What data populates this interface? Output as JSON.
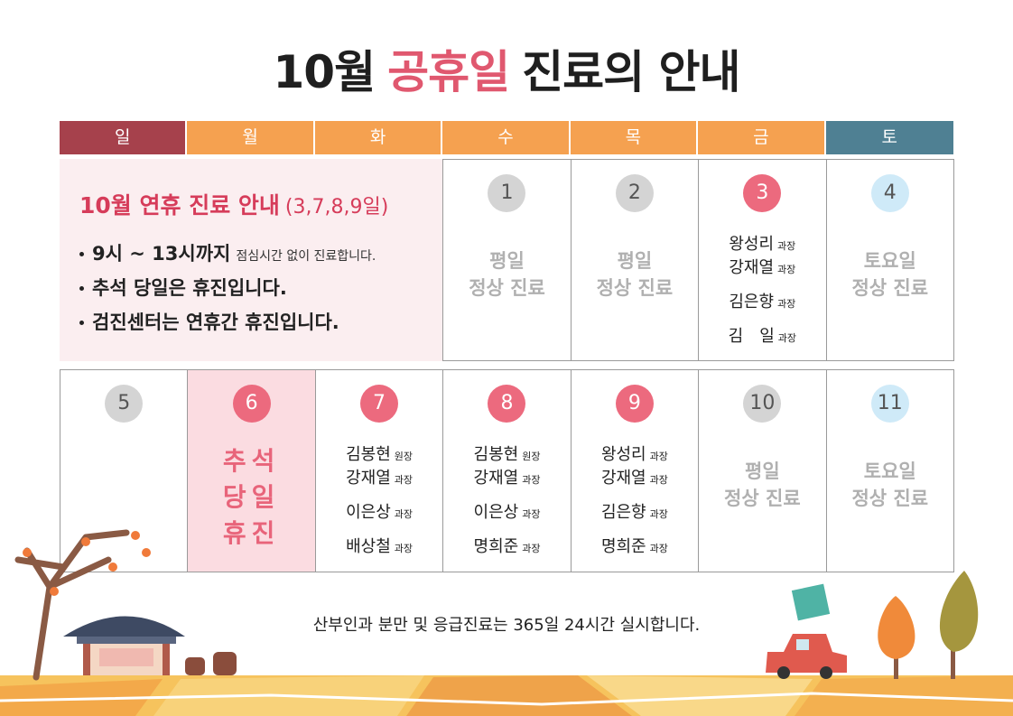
{
  "title": {
    "prefix": "10월",
    "highlight": "공휴일",
    "suffix": "진료의 안내"
  },
  "weekdays": [
    {
      "label": "일",
      "color": "#a6414c"
    },
    {
      "label": "월",
      "color": "#f5a150"
    },
    {
      "label": "화",
      "color": "#f5a150"
    },
    {
      "label": "수",
      "color": "#f5a150"
    },
    {
      "label": "목",
      "color": "#f5a150"
    },
    {
      "label": "금",
      "color": "#f5a150"
    },
    {
      "label": "토",
      "color": "#4f8093"
    }
  ],
  "notice": {
    "heading": "10월 연휴 진료 안내",
    "heading_note": "(3,7,8,9일)",
    "items": [
      {
        "strong": "9시 ~ 13시까지",
        "note": "점심시간 없이 진료합니다."
      },
      {
        "strong": "추석 당일은 휴진입니다."
      },
      {
        "strong": "검진센터는 연휴간 휴진입니다."
      }
    ]
  },
  "weeks": [
    [
      {
        "day": "1",
        "color": "#d4d4d4",
        "status": [
          "평일",
          "정상 진료"
        ]
      },
      {
        "day": "2",
        "color": "#d4d4d4",
        "status": [
          "평일",
          "정상 진료"
        ]
      },
      {
        "day": "3",
        "color": "#ec6a7e",
        "doctors": [
          {
            "name": "왕성리",
            "role": "과장"
          },
          {
            "name": "강재열",
            "role": "과장"
          },
          {
            "name": "김은향",
            "role": "과장"
          },
          {
            "name": "김　일",
            "role": "과장"
          }
        ]
      },
      {
        "day": "4",
        "color": "#cfeaf8",
        "status": [
          "토요일",
          "정상 진료"
        ]
      }
    ],
    [
      {
        "day": "5",
        "color": "#d4d4d4"
      },
      {
        "day": "6",
        "color": "#ec6a7e",
        "background": "#fbdce1",
        "closed": [
          "추석",
          "당일",
          "휴진"
        ]
      },
      {
        "day": "7",
        "color": "#ec6a7e",
        "doctors": [
          {
            "name": "김봉현",
            "role": "원장"
          },
          {
            "name": "강재열",
            "role": "과장"
          },
          {
            "name": "이은상",
            "role": "과장"
          },
          {
            "name": "배상철",
            "role": "과장"
          }
        ]
      },
      {
        "day": "8",
        "color": "#ec6a7e",
        "doctors": [
          {
            "name": "김봉현",
            "role": "원장"
          },
          {
            "name": "강재열",
            "role": "과장"
          },
          {
            "name": "이은상",
            "role": "과장"
          },
          {
            "name": "명희준",
            "role": "과장"
          }
        ]
      },
      {
        "day": "9",
        "color": "#ec6a7e",
        "doctors": [
          {
            "name": "왕성리",
            "role": "과장"
          },
          {
            "name": "강재열",
            "role": "과장"
          },
          {
            "name": "김은향",
            "role": "과장"
          },
          {
            "name": "명희준",
            "role": "과장"
          }
        ]
      },
      {
        "day": "10",
        "color": "#d4d4d4",
        "status": [
          "평일",
          "정상 진료"
        ]
      },
      {
        "day": "11",
        "color": "#cfeaf8",
        "status": [
          "토요일",
          "정상 진료"
        ]
      }
    ]
  ],
  "footer": "산부인과 분만 및 응급진료는 365일 24시간 실시합니다."
}
